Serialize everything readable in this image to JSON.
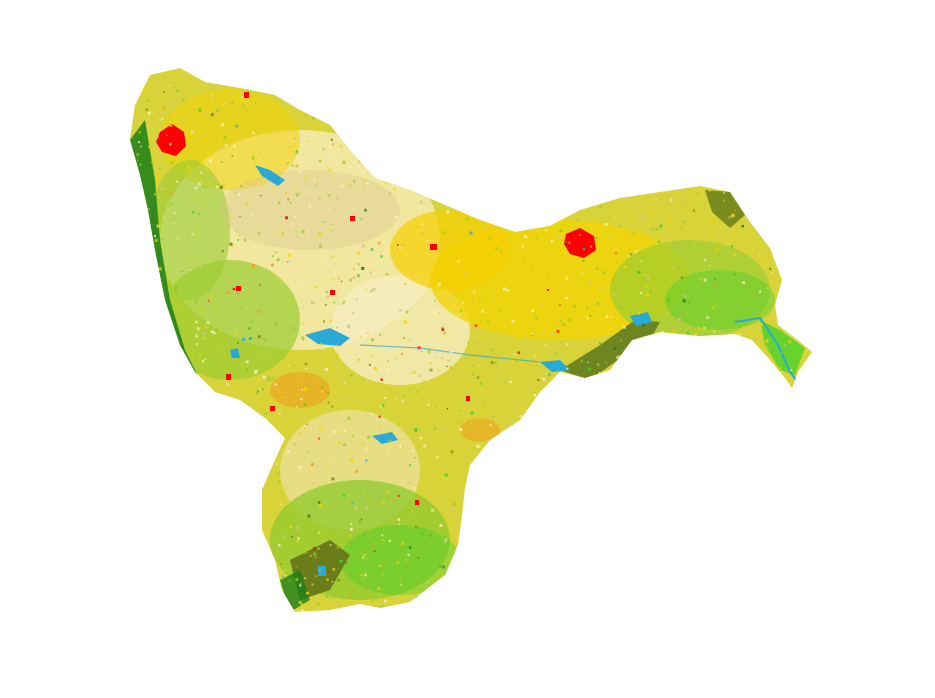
{
  "map": {
    "kind": "land-cover-raster",
    "background": "#ffffff",
    "classes": [
      {
        "name": "urban",
        "color": "#ff0000"
      },
      {
        "name": "water",
        "color": "#2aa8d8"
      },
      {
        "name": "cropland-yellow",
        "color": "#f2d400"
      },
      {
        "name": "cropland-pale",
        "color": "#f7eec0"
      },
      {
        "name": "sparse-tan",
        "color": "#d8c38c"
      },
      {
        "name": "grassland",
        "color": "#9acd32"
      },
      {
        "name": "olive-woodland",
        "color": "#7a8b1e"
      },
      {
        "name": "forest",
        "color": "#1a7f1a"
      },
      {
        "name": "bright-vegetation",
        "color": "#35d12a"
      },
      {
        "name": "orange-shrub",
        "color": "#f39a18"
      }
    ]
  }
}
